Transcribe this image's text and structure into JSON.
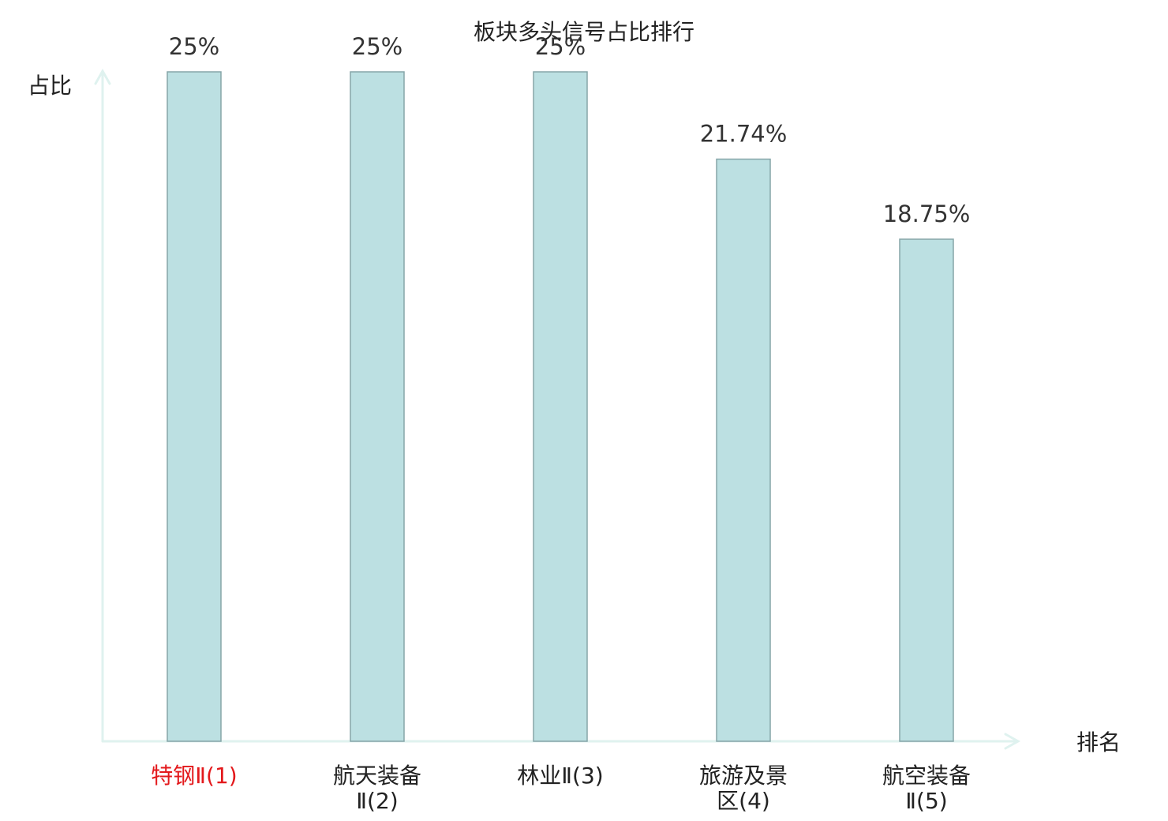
{
  "chart_data": {
    "type": "bar",
    "title": "板块多头信号占比排行",
    "y_label": "占比",
    "x_label": "排名",
    "categories": [
      "特钢Ⅱ(1)",
      "航天装备Ⅱ(2)",
      "林业Ⅱ(3)",
      "旅游及景区(4)",
      "航空装备Ⅱ(5)"
    ],
    "category_colors": [
      "#e3191c",
      "#222222",
      "#222222",
      "#222222",
      "#222222"
    ],
    "values": [
      25,
      25,
      25,
      21.74,
      18.75
    ],
    "value_labels": [
      "25%",
      "25%",
      "25%",
      "21.74%",
      "18.75%"
    ],
    "color": "#bce0e2",
    "edge_color": "#86a5a8",
    "axis_color": "#dff2ef",
    "ylim": [
      0,
      25
    ]
  }
}
